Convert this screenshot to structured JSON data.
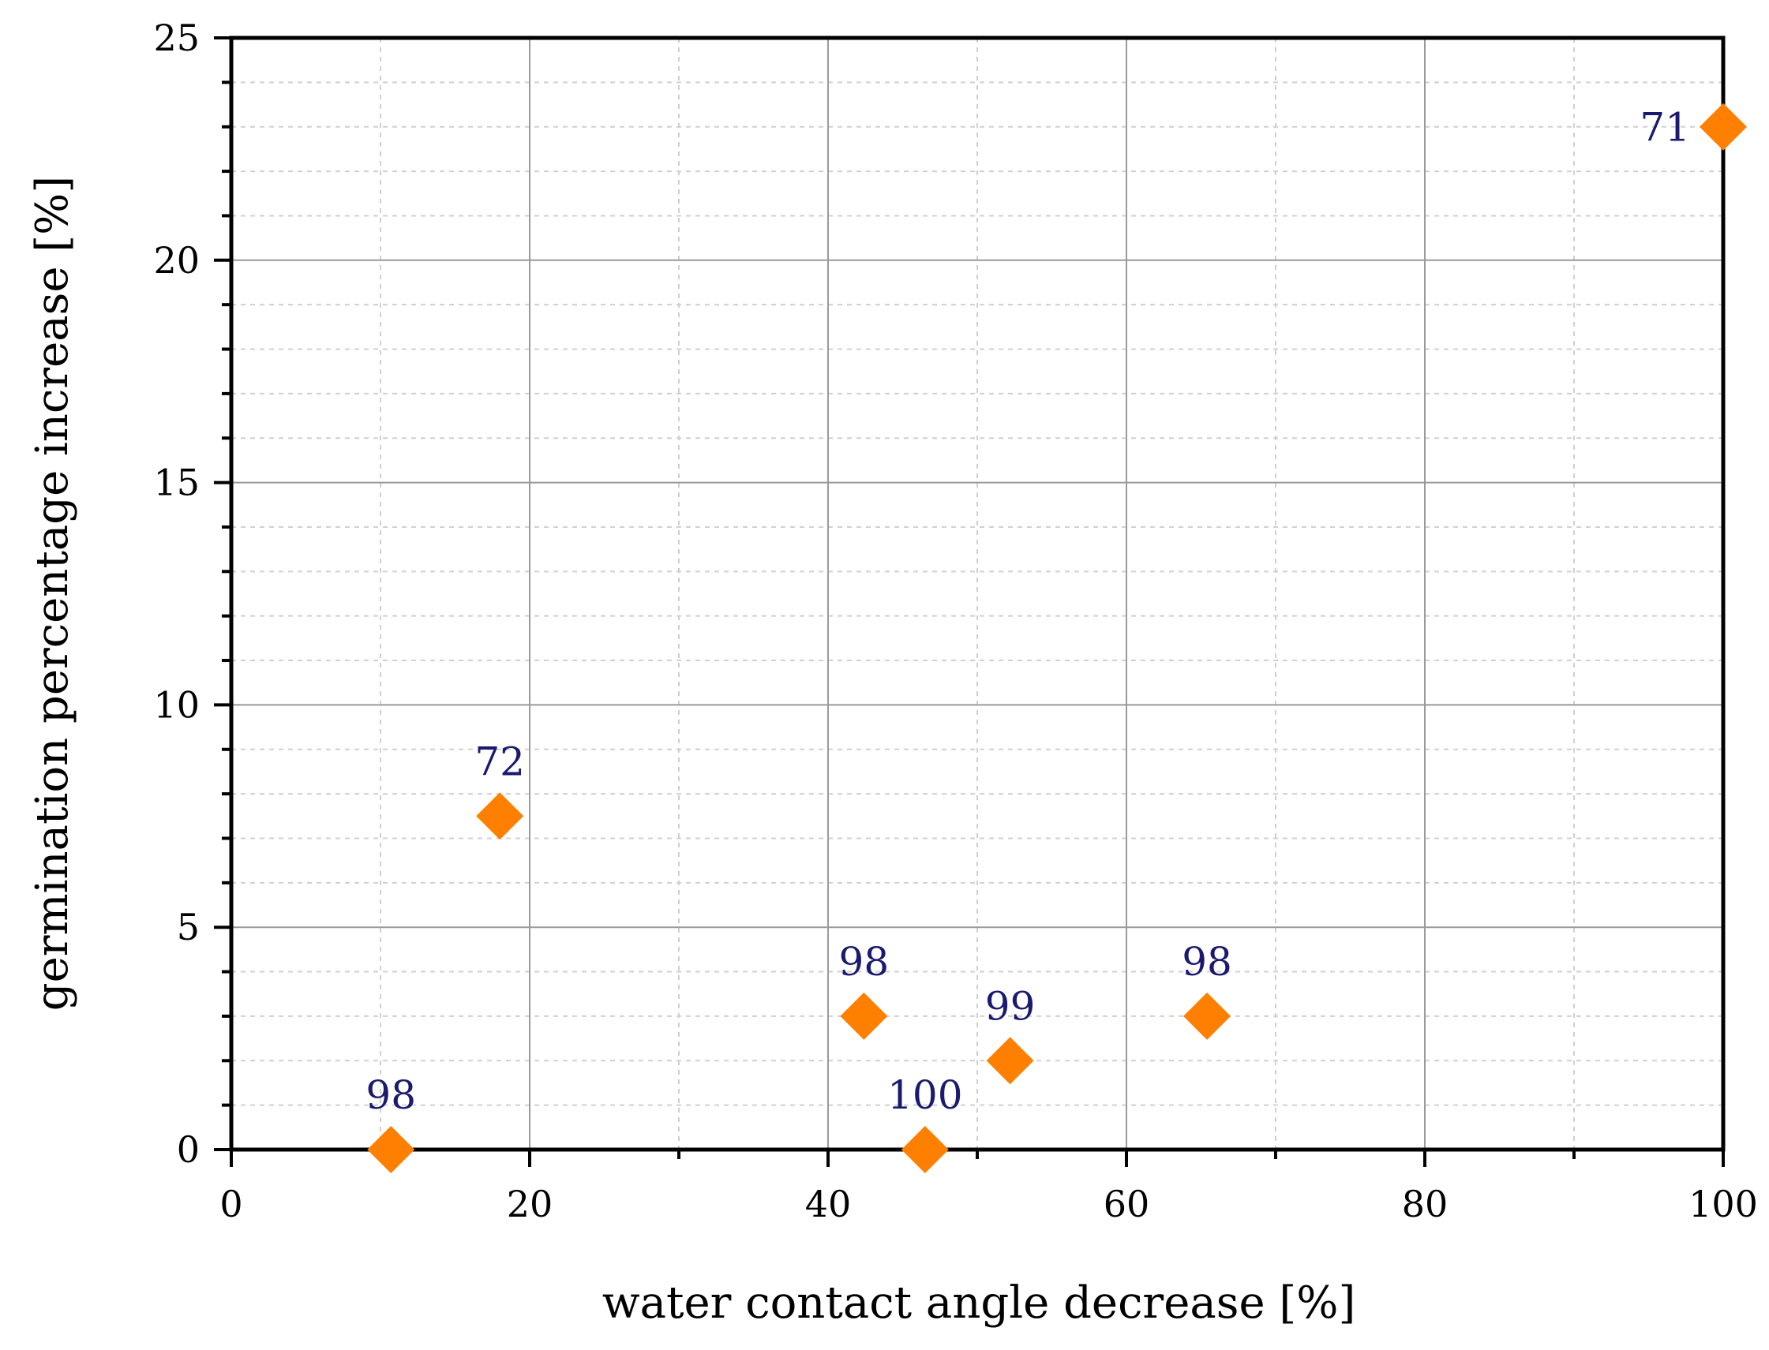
{
  "chart_data": {
    "type": "scatter",
    "title": "",
    "xlabel": "water contact angle decrease [%]",
    "ylabel": "germination percentage increase [%]",
    "xlim": [
      0,
      100
    ],
    "ylim": [
      0,
      25
    ],
    "x_ticks": [
      0,
      20,
      40,
      60,
      80,
      100
    ],
    "x_tick_labels": [
      "0",
      "20",
      "40",
      "60",
      "80",
      "100"
    ],
    "y_ticks": [
      0,
      5,
      10,
      15,
      20,
      25
    ],
    "y_tick_labels": [
      "0",
      "5",
      "10",
      "15",
      "20",
      "25"
    ],
    "grid": true,
    "marker": "diamond",
    "marker_color": "#FF8000",
    "label_color": "#1A1A6E",
    "points": [
      {
        "x": 10.7,
        "y": 0,
        "label": "98",
        "label_pos": "above"
      },
      {
        "x": 18.0,
        "y": 7.5,
        "label": "72",
        "label_pos": "above"
      },
      {
        "x": 42.4,
        "y": 3.0,
        "label": "98",
        "label_pos": "above"
      },
      {
        "x": 46.5,
        "y": 0,
        "label": "100",
        "label_pos": "above"
      },
      {
        "x": 52.2,
        "y": 2.0,
        "label": "99",
        "label_pos": "above"
      },
      {
        "x": 65.4,
        "y": 3.0,
        "label": "98",
        "label_pos": "above"
      },
      {
        "x": 100,
        "y": 23.0,
        "label": "71",
        "label_pos": "left"
      }
    ]
  }
}
